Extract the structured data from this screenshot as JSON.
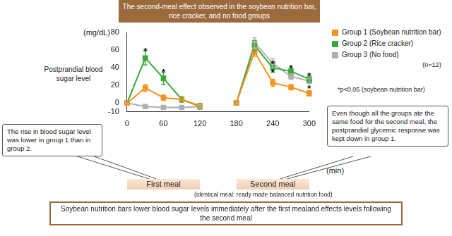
{
  "chart_data": {
    "type": "line",
    "title": "The second-meal effect observed in the soybean nutrition bar, rice cracker, and no food groups",
    "ylabel": "Postprandial blood sugar level",
    "y_unit_label": "(mg/dL)",
    "xlabel": "(min)",
    "x": [
      0,
      30,
      60,
      90,
      120,
      150,
      180,
      210,
      240,
      270,
      300
    ],
    "xlim": [
      0,
      300
    ],
    "xticks": [
      0,
      60,
      120,
      180,
      240,
      300
    ],
    "ylim": [
      -10,
      80
    ],
    "yticks": [
      -10,
      0,
      20,
      40,
      60,
      80
    ],
    "grid": false,
    "legend": "top-right",
    "sample_size": "(n=12)",
    "significance_mark": "*",
    "footnote": "*p<0.05 (soybean nutrition bar)",
    "series": [
      {
        "name": "Group 1 (Soybean nutrition bar)",
        "color": "#f7931e",
        "marker": "square",
        "values": [
          0,
          17,
          6,
          4,
          -3,
          null,
          0,
          58,
          23,
          18,
          11
        ],
        "errors": [
          0,
          4,
          3,
          2,
          2,
          null,
          0,
          5,
          4,
          3,
          3
        ],
        "significant_x": []
      },
      {
        "name": "Group 2 (Rice cracker)",
        "color": "#3aa83a",
        "marker": "square",
        "values": [
          0,
          51,
          28,
          4,
          -4,
          null,
          0,
          65,
          40,
          36,
          27
        ],
        "errors": [
          0,
          8,
          7,
          3,
          3,
          null,
          0,
          6,
          5,
          4,
          4
        ],
        "significant_x": [
          30,
          60,
          240,
          270,
          300
        ]
      },
      {
        "name": "Group 3 (No food)",
        "color": "#b0b0b0",
        "marker": "square",
        "values": [
          0,
          -4,
          -5,
          -5,
          -4,
          null,
          0,
          68,
          45,
          30,
          25
        ],
        "errors": [
          0,
          2,
          2,
          2,
          2,
          null,
          0,
          6,
          5,
          3,
          3
        ],
        "significant_x": [
          240,
          300
        ]
      }
    ],
    "callouts": [
      "The rise in blood sugar level was lower in group 1 than in group 2.",
      "Even though all the groups ate the same food for the second meal, the postprandial glycemic response was kept down in group 1."
    ],
    "periods": [
      {
        "label": "First meal",
        "range": [
          0,
          120
        ]
      },
      {
        "label": "Second meal",
        "range": [
          180,
          300
        ]
      }
    ],
    "period_note": "(identical meal: ready made balanced nutrition food)",
    "conclusion": "Soybean nutrition bars lower blood sugar levels immediately after the first mealand effects levels following the second meal"
  }
}
